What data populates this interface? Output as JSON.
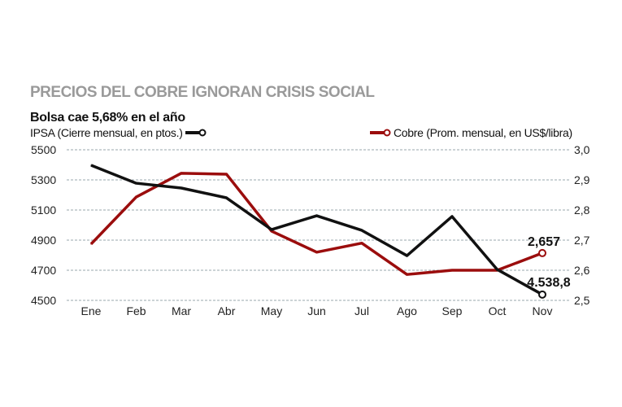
{
  "chart_data": {
    "type": "line",
    "title": "PRECIOS DEL COBRE IGNORAN CRISIS SOCIAL",
    "subtitle": "Bolsa cae 5,68% en el año",
    "categories": [
      "Ene",
      "Feb",
      "Mar",
      "Abr",
      "May",
      "Jun",
      "Jul",
      "Ago",
      "Sep",
      "Oct",
      "Nov"
    ],
    "series": [
      {
        "name": "IPSA (Cierre mensual, en ptos.)",
        "axis": "left",
        "color": "#111111",
        "values": [
          5397,
          5278,
          5246,
          5181,
          4970,
          5062,
          4965,
          4797,
          5057,
          4705,
          4538.8
        ]
      },
      {
        "name": "Cobre (Prom. mensual, en US$/libra)",
        "axis": "right",
        "color": "#9b0d0d",
        "values": [
          2.687,
          2.843,
          2.922,
          2.919,
          2.73,
          2.66,
          2.69,
          2.586,
          2.6,
          2.6,
          2.657
        ]
      }
    ],
    "left_axis": {
      "ylim": [
        4500,
        5500
      ],
      "ticks": [
        "5500",
        "5300",
        "5100",
        "4900",
        "4700",
        "4500"
      ],
      "tick_values": [
        5500,
        5300,
        5100,
        4900,
        4700,
        4500
      ]
    },
    "right_axis": {
      "ylim": [
        2.5,
        3.0
      ],
      "ticks": [
        "3,0",
        "2,9",
        "2,8",
        "2,7",
        "2,6",
        "2,5"
      ],
      "tick_values": [
        3.0,
        2.9,
        2.8,
        2.7,
        2.6,
        2.5
      ]
    },
    "data_labels": {
      "ipsa_last": "4.538,8",
      "cobre_last": "2,657"
    },
    "grid": true,
    "legend_placement": "top"
  }
}
